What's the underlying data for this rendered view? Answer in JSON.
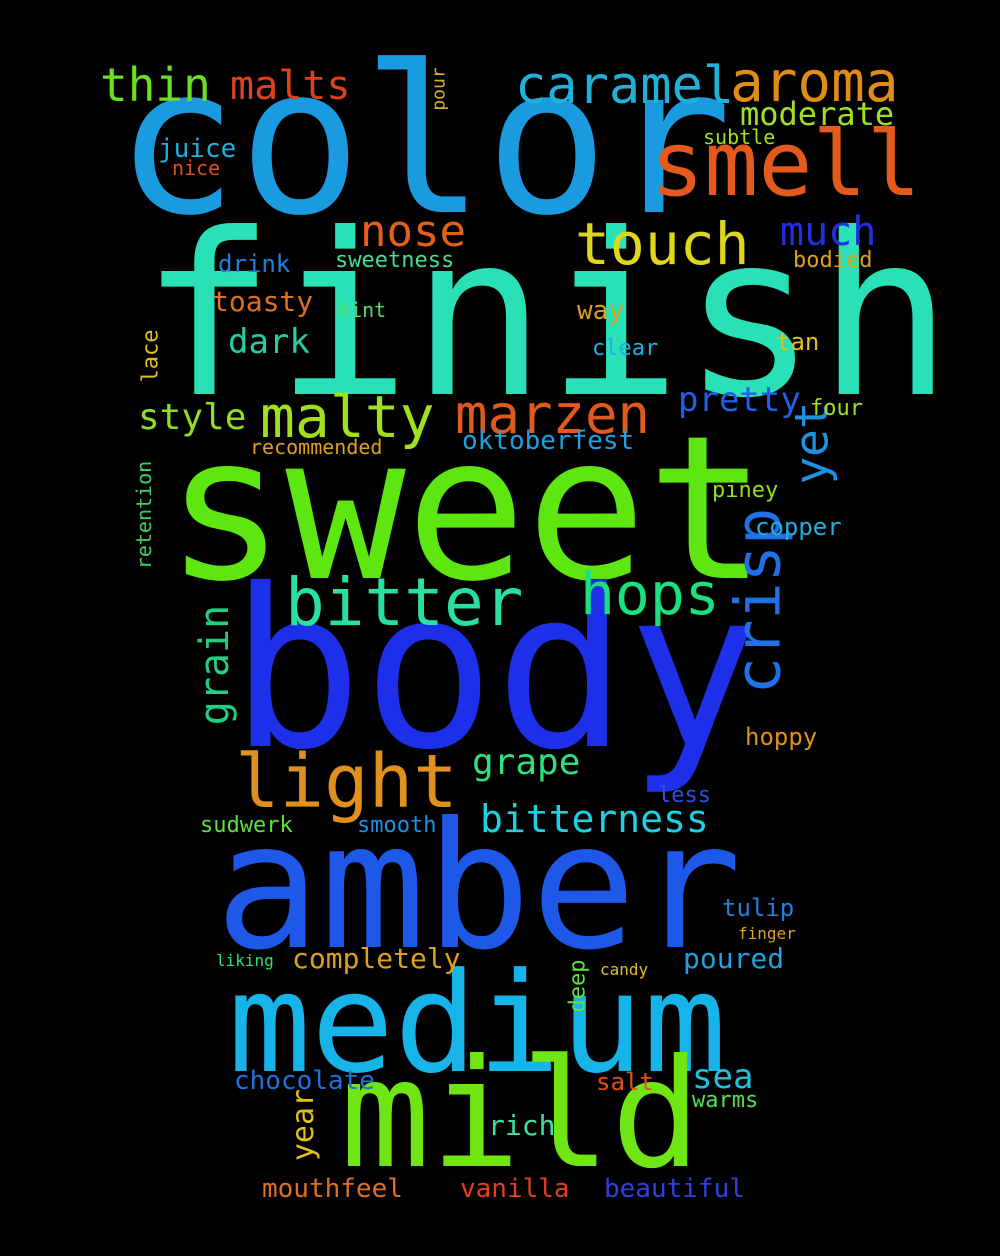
{
  "words": [
    {
      "text": "color",
      "color": "#1a9be0"
    },
    {
      "text": "finish",
      "color": "#2ae0b6"
    },
    {
      "text": "sweet",
      "color": "#5ee610"
    },
    {
      "text": "body",
      "color": "#1d2fe8"
    },
    {
      "text": "amber",
      "color": "#1e58e8"
    },
    {
      "text": "medium",
      "color": "#16b4e8"
    },
    {
      "text": "mild",
      "color": "#6fe614"
    },
    {
      "text": "smell",
      "color": "#e45a1c"
    },
    {
      "text": "aroma",
      "color": "#e08c1a"
    },
    {
      "text": "caramel",
      "color": "#20b0d8"
    },
    {
      "text": "touch",
      "color": "#e0d61c"
    },
    {
      "text": "malty",
      "color": "#a2e01c"
    },
    {
      "text": "marzen",
      "color": "#e05a1c"
    },
    {
      "text": "light",
      "color": "#e0901c"
    },
    {
      "text": "bitter",
      "color": "#2ae0a0"
    },
    {
      "text": "hops",
      "color": "#1ae080"
    },
    {
      "text": "crisp",
      "color": "#2070e8"
    },
    {
      "text": "bitterness",
      "color": "#20d0e0"
    },
    {
      "text": "thin",
      "color": "#6ae020"
    },
    {
      "text": "malts",
      "color": "#e0401c"
    },
    {
      "text": "nose",
      "color": "#e0601c"
    },
    {
      "text": "much",
      "color": "#2030e0"
    },
    {
      "text": "moderate",
      "color": "#a0e020"
    },
    {
      "text": "yet",
      "color": "#2090e0"
    },
    {
      "text": "pretty",
      "color": "#2060e8"
    },
    {
      "text": "style",
      "color": "#90e020"
    },
    {
      "text": "grain",
      "color": "#20d080"
    },
    {
      "text": "grape",
      "color": "#30e080"
    },
    {
      "text": "dark",
      "color": "#20d0a0"
    },
    {
      "text": "toasty",
      "color": "#e0701c"
    },
    {
      "text": "oktoberfest",
      "color": "#20a0e0"
    },
    {
      "text": "mouthfeel",
      "color": "#e0701c"
    },
    {
      "text": "vanilla",
      "color": "#e0401c"
    },
    {
      "text": "beautiful",
      "color": "#3040e0"
    },
    {
      "text": "chocolate",
      "color": "#2070e0"
    },
    {
      "text": "completely",
      "color": "#e0a01c"
    },
    {
      "text": "poured",
      "color": "#20a0e0"
    },
    {
      "text": "sea",
      "color": "#20c0e0"
    },
    {
      "text": "warms",
      "color": "#50e050"
    },
    {
      "text": "rich",
      "color": "#40e0a0"
    },
    {
      "text": "year",
      "color": "#e0c01c"
    },
    {
      "text": "salt",
      "color": "#e0501c"
    },
    {
      "text": "juice",
      "color": "#20b0e0"
    },
    {
      "text": "nice",
      "color": "#e0501c"
    },
    {
      "text": "bodied",
      "color": "#e0a01c"
    },
    {
      "text": "subtle",
      "color": "#a0e020"
    },
    {
      "text": "sweetness",
      "color": "#40e090"
    },
    {
      "text": "drink",
      "color": "#2080e0"
    },
    {
      "text": "hoppy",
      "color": "#e0901c"
    },
    {
      "text": "smooth",
      "color": "#2090e0"
    },
    {
      "text": "sudwerk",
      "color": "#60e040"
    },
    {
      "text": "copper",
      "color": "#20b0e0"
    },
    {
      "text": "piney",
      "color": "#90e020"
    },
    {
      "text": "tulip",
      "color": "#2080e0"
    },
    {
      "text": "retention",
      "color": "#40d060"
    },
    {
      "text": "recommended",
      "color": "#e0a01c"
    },
    {
      "text": "four",
      "color": "#a0e020"
    },
    {
      "text": "clear",
      "color": "#20b0e0"
    },
    {
      "text": "way",
      "color": "#e0a01c"
    },
    {
      "text": "hint",
      "color": "#50e060"
    },
    {
      "text": "tan",
      "color": "#e0c01c"
    },
    {
      "text": "lace",
      "color": "#e0c01c"
    },
    {
      "text": "deep",
      "color": "#60e040"
    },
    {
      "text": "less",
      "color": "#3050e0"
    },
    {
      "text": "pour",
      "color": "#e0b01c"
    },
    {
      "text": "candy",
      "color": "#e0c01c"
    },
    {
      "text": "finger",
      "color": "#e0a01c"
    },
    {
      "text": "liking",
      "color": "#30e070"
    }
  ]
}
